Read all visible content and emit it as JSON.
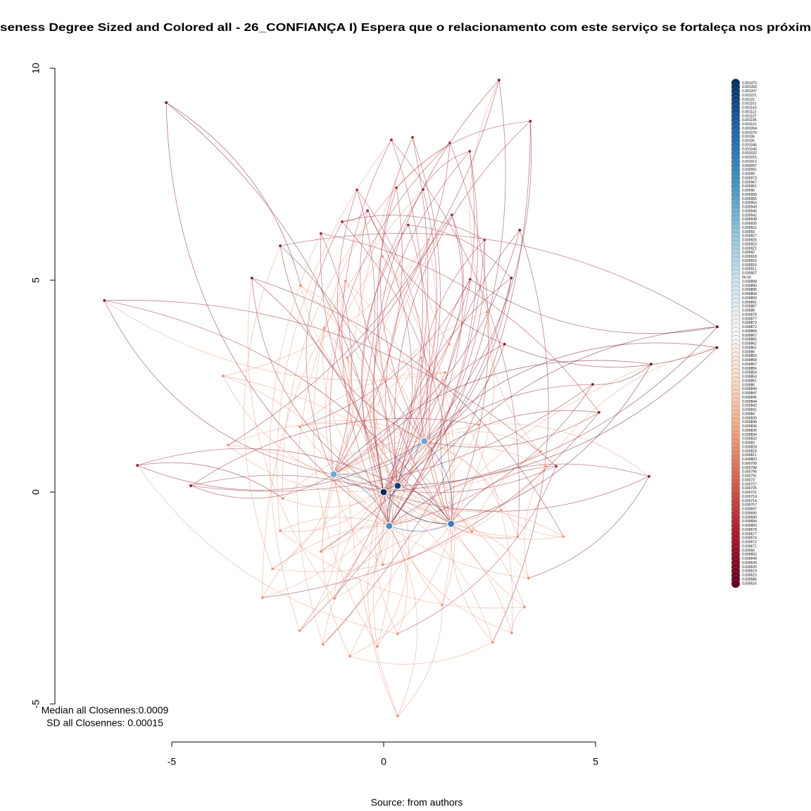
{
  "chart_data": {
    "type": "network",
    "title": "seness Degree Sized and Colored all - 26_CONFIANÇA I) Espera que o relacionamento com este serviço se fortaleça nos próxim",
    "annotations": [
      "Median all Closennes:0.0009",
      "SD all Closennes: 0.00015"
    ],
    "caption": "Source: from authors",
    "xlim": [
      -5,
      5
    ],
    "ylim": [
      -5,
      10
    ],
    "xticks": [
      -5,
      0,
      5
    ],
    "yticks": [
      -5,
      0,
      5,
      10
    ],
    "nodes": {
      "x": [
        0,
        0.33,
        1.59,
        0.13,
        0.96,
        -1.18,
        -5.13,
        -2.44,
        -6.59,
        2.72,
        3.46,
        3.21,
        0.18,
        0.68,
        1.56,
        2.03,
        -0.63,
        0.3,
        0.93,
        -0.38,
        -0.98,
        0.58,
        1.61,
        -1.48,
        1.05,
        2.38,
        -0.03,
        -3.11,
        -0.9,
        2.04,
        3.01,
        -1.96,
        2.44,
        -1.4,
        2.85,
        1.54,
        7.87,
        7.86,
        6.31,
        4.93,
        5.08,
        4.07,
        6.26,
        -5.81,
        -4.55,
        -3.79,
        -3.67,
        1.45,
        0.33,
        -2.86,
        -1.98,
        -1.43,
        -0.15,
        -0.8,
        0.33,
        1.38,
        2.57,
        3.02,
        3.32,
        3.42,
        4.24,
        3.16,
        -2.62,
        -2.44,
        -2.38,
        -0.02,
        -1.16,
        3.7,
        3.82,
        2.24,
        -1.98,
        -0.86,
        0.88,
        2.77,
        2.08,
        -1.48
      ],
      "y": [
        0,
        0.15,
        -0.75,
        -0.8,
        1.2,
        0.42,
        9.19,
        5.81,
        4.52,
        9.72,
        8.75,
        6.18,
        8.31,
        8.37,
        8.24,
        8.04,
        7.13,
        7.18,
        7.14,
        6.64,
        6.38,
        6.3,
        6.54,
        6.1,
        5.95,
        5.95,
        5.56,
        5.05,
        4.98,
        5.02,
        5.05,
        4.87,
        4.25,
        3.87,
        3.49,
        3.49,
        3.9,
        3.41,
        3.02,
        2.54,
        1.88,
        0.61,
        0.37,
        0.63,
        0.15,
        2.74,
        1.11,
        2.82,
        -5.28,
        -2.49,
        -3.27,
        -3.59,
        -3.64,
        -3.87,
        -3.34,
        -2.66,
        -3.54,
        -3.32,
        -2.71,
        -2.03,
        -1.05,
        -1.05,
        -1.81,
        -0.91,
        -0.15,
        -1.71,
        -2.51,
        0.95,
        0.61,
        1.59,
        1.54,
        3.17,
        3.17,
        -0.43,
        -0.93,
        -1.4
      ],
      "colors": [
        "#0b2a55",
        "#173f73",
        "#3a7bbf",
        "#4a8ac6",
        "#6fa6d4",
        "#6fa6d4",
        "#7a1020",
        "#8b1a2a",
        "#8b1a2a",
        "#8b1a2a",
        "#8b1a2a",
        "#8b1a2a",
        "#a8283a",
        "#a8283a",
        "#a8283a",
        "#a8283a",
        "#a8283a",
        "#a8283a",
        "#a8283a",
        "#a8283a",
        "#a8283a",
        "#a8283a",
        "#a8283a",
        "#a8283a",
        "#e8967a",
        "#a8283a",
        "#e8967a",
        "#8b1a2a",
        "#e8967a",
        "#a8283a",
        "#8b1a2a",
        "#e8967a",
        "#e8967a",
        "#e8967a",
        "#8b1a2a",
        "#e8967a",
        "#6b0a1c",
        "#6b0a1c",
        "#6b0a1c",
        "#8b1a2a",
        "#8b1a2a",
        "#a8283a",
        "#8b1a2a",
        "#8b1a2a",
        "#8b1a2a",
        "#e8967a",
        "#e8967a",
        "#e8967a",
        "#e8967a",
        "#e8967a",
        "#e8967a",
        "#e8967a",
        "#e8967a",
        "#e8967a",
        "#e8967a",
        "#e8967a",
        "#e8967a",
        "#e8967a",
        "#e8967a",
        "#e8967a",
        "#e8967a",
        "#e8967a",
        "#e8967a",
        "#e8967a",
        "#e8967a",
        "#e8967a",
        "#e8967a",
        "#e8967a",
        "#e8967a",
        "#e8967a",
        "#e8967a",
        "#e8967a",
        "#e8967a",
        "#e8967a",
        "#e8967a",
        "#e8967a"
      ]
    },
    "legend": {
      "values": [
        0.001475,
        0.001393,
        0.001207,
        0.001221,
        0.00122,
        0.001161,
        0.001143,
        0.001113,
        0.001107,
        0.001106,
        0.001101,
        0.001094,
        0.001076,
        0.00106,
        0.00105,
        0.001046,
        0.001045,
        0.001032,
        0.001015,
        0.001012,
        0.000997,
        0.000991,
        0.00099,
        0.000973,
        0.000967,
        0.000961,
        0.00096,
        0.000958,
        0.000956,
        0.000954,
        0.000949,
        0.000945,
        0.000942,
        0.000938,
        0.000935,
        0.000931,
        0.00093,
        0.000927,
        0.000926,
        0.000923,
        0.000921,
        0.00092,
        0.000918,
        0.000916,
        0.000915,
        0.000911,
        0.000907,
        {
          "value": 0.0009,
          "label": "9e-04"
        },
        0.000898,
        0.000896,
        0.000895,
        0.000894,
        0.000893,
        0.000891,
        0.000887,
        0.00088,
        0.000878,
        0.000877,
        0.000873,
        0.000872,
        0.000868,
        0.000867,
        0.000865,
        0.000862,
        0.000861,
        0.00086,
        0.000859,
        0.000858,
        0.000857,
        0.000856,
        0.000854,
        0.000853,
        0.000851,
        0.00085,
        0.000849,
        0.000847,
        0.000845,
        0.000844,
        0.000842,
        0.000841,
        0.00084,
        0.000839,
        0.000838,
        0.000836,
        0.000835,
        0.000834,
        0.000832,
        0.00083,
        0.000828,
        0.000818,
        0.000811,
        0.000802,
        0.000799,
        0.000798,
        0.000796,
        0.000791,
        0.00073,
        0.000727,
        0.000725,
        0.000721,
        0.000719,
        0.000714,
        0.000707,
        0.000697,
        0.000695,
        0.000689,
        0.000684,
        0.000683,
        0.000678,
        0.000677,
        0.000674,
        0.000672,
        0.000671,
        0.00066,
        0.000652,
        0.000649,
        0.000643,
        0.000625,
        0.000619,
        0.000615,
        0.000586,
        0.000516
      ]
    }
  }
}
